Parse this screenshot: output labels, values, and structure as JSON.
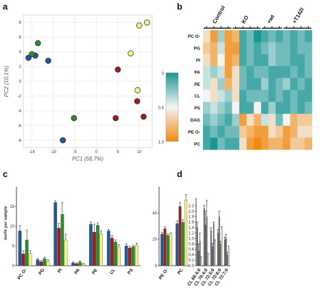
{
  "colors": {
    "Control": "#1f5a96",
    "KO": "#a31a1a",
    "KO +wt": "#2e8b2e",
    "KO +T142I": "#f5ef8a",
    "heat_high": "#1a9694",
    "heat_mid": "#f4f4f4",
    "heat_low": "#f08a10"
  },
  "panels": {
    "a": "a",
    "b": "b",
    "c": "c",
    "d": "d"
  },
  "chart_data": [
    {
      "panel": "a",
      "type": "scatter",
      "xlabel": "PC1 (56.7%)",
      "ylabel": "PC2 (10.1%)",
      "xlim": [
        -17,
        13
      ],
      "ylim": [
        -9,
        9
      ],
      "xticks": [
        -15,
        -10,
        -5,
        0,
        5,
        10
      ],
      "yticks": [
        -8,
        -6,
        -4,
        -2,
        0,
        2,
        4,
        6,
        8
      ],
      "grid": true,
      "series": [
        {
          "name": "Control",
          "points": [
            [
              -15.8,
              3.2
            ],
            [
              -14.2,
              3.5
            ],
            [
              -11.2,
              2.8
            ],
            [
              -7.8,
              -8.0
            ]
          ]
        },
        {
          "name": "KO",
          "points": [
            [
              5.0,
              1.6
            ],
            [
              9.5,
              -2.7
            ],
            [
              11.0,
              -4.8
            ],
            [
              4.5,
              -5.0
            ]
          ]
        },
        {
          "name": "KO +wt",
          "points": [
            [
              -15.0,
              3.7
            ],
            [
              -13.6,
              5.2
            ],
            [
              -5.2,
              -5.0
            ]
          ]
        },
        {
          "name": "KO +T142I",
          "points": [
            [
              8.0,
              3.8
            ],
            [
              10.0,
              7.6
            ],
            [
              11.8,
              8.0
            ],
            [
              9.6,
              -1.2
            ]
          ]
        }
      ]
    },
    {
      "panel": "b",
      "type": "heatmap",
      "groups": [
        "Control",
        "KO",
        "+wt",
        "+T142I"
      ],
      "group_sizes": [
        4,
        4,
        3,
        4
      ],
      "rows": [
        "PC O-",
        "PG",
        "PI",
        "PA",
        "PE",
        "CL",
        "PS",
        "DAG",
        "PE O-",
        "PC"
      ],
      "colorbar_ticks": [
        "0",
        "0.5",
        "1.0"
      ],
      "values": [
        [
          0.6,
          0.9,
          0.3,
          0.9,
          0.8,
          0.1,
          0.2,
          0.0,
          0.1,
          0.2,
          0.1,
          0.2,
          0.1,
          0.2,
          0.1
        ],
        [
          0.7,
          0.8,
          0.4,
          0.9,
          0.9,
          0.1,
          0.2,
          0.1,
          0.2,
          0.3,
          0.2,
          0.2,
          0.1,
          0.2,
          0.2
        ],
        [
          0.6,
          0.8,
          0.5,
          0.9,
          0.8,
          0.1,
          0.2,
          0.1,
          0.1,
          0.3,
          0.2,
          0.2,
          0.1,
          0.1,
          0.2
        ],
        [
          0.4,
          0.3,
          0.4,
          0.9,
          0.6,
          0.2,
          0.1,
          0.2,
          0.2,
          0.1,
          0.1,
          0.1,
          0.2,
          0.1,
          0.2
        ],
        [
          0.4,
          0.6,
          0.3,
          0.8,
          0.6,
          0.2,
          0.1,
          0.1,
          0.3,
          0.1,
          0.2,
          0.3,
          0.1,
          0.2,
          0.1
        ],
        [
          0.5,
          0.6,
          0.4,
          0.3,
          0.6,
          0.1,
          0.2,
          0.2,
          0.2,
          0.1,
          0.2,
          0.1,
          0.2,
          0.1,
          0.1
        ],
        [
          0.3,
          0.4,
          0.3,
          0.2,
          0.5,
          0.1,
          0.1,
          0.5,
          0.1,
          0.3,
          0.1,
          0.1,
          0.2,
          0.1,
          0.2
        ],
        [
          0.2,
          0.3,
          0.2,
          0.1,
          0.3,
          0.9,
          0.6,
          0.8,
          0.4,
          0.6,
          0.2,
          0.5,
          0.8,
          0.7,
          0.7
        ],
        [
          0.1,
          0.2,
          0.1,
          0.2,
          0.2,
          0.7,
          0.8,
          0.9,
          0.9,
          0.6,
          0.7,
          0.9,
          0.8,
          0.6,
          0.6
        ],
        [
          0.1,
          0.0,
          0.2,
          0.1,
          0.1,
          0.6,
          0.9,
          1.0,
          0.9,
          0.8,
          0.8,
          0.9,
          0.7,
          0.7,
          0.8
        ]
      ]
    },
    {
      "panel": "c",
      "type": "bar",
      "ylabel": "mol% per sample",
      "subplots": [
        {
          "categories": [
            "PC O-",
            "PG",
            "PI",
            "PA",
            "PE",
            "CL",
            "PS"
          ],
          "ylim": [
            0,
            20
          ],
          "yticks": [
            0,
            5,
            10,
            15
          ],
          "series": [
            {
              "name": "Control",
              "values": [
                8.8,
                1.5,
                16.0,
                0.7,
                10.5,
                8.8,
                5.0
              ],
              "errors": [
                1.3,
                0.3,
                0.5,
                0.2,
                0.6,
                0.4,
                0.5
              ]
            },
            {
              "name": "KO",
              "values": [
                3.0,
                1.0,
                9.5,
                0.5,
                8.5,
                7.0,
                4.5
              ],
              "errors": [
                0.8,
                0.3,
                1.2,
                0.2,
                2.0,
                0.6,
                0.4
              ]
            },
            {
              "name": "KO +wt",
              "values": [
                6.5,
                1.8,
                13.0,
                0.9,
                10.2,
                6.0,
                4.8
              ],
              "errors": [
                2.5,
                0.4,
                3.0,
                0.3,
                0.6,
                0.5,
                0.4
              ]
            },
            {
              "name": "KO +T142I",
              "values": [
                3.0,
                1.2,
                6.5,
                0.4,
                8.0,
                4.8,
                5.2
              ],
              "errors": [
                0.8,
                0.3,
                1.5,
                0.1,
                0.8,
                0.5,
                0.5
              ]
            }
          ]
        },
        {
          "categories": [
            "PE O-",
            "PC"
          ],
          "ylim": [
            0,
            60
          ],
          "yticks": [
            0,
            20,
            40
          ],
          "series": [
            {
              "name": "Control",
              "values": [
                24,
                32
              ],
              "errors": [
                1.5,
                2.0
              ]
            },
            {
              "name": "KO",
              "values": [
                28,
                45
              ],
              "errors": [
                1.5,
                3.0
              ]
            },
            {
              "name": "KO +wt",
              "values": [
                23,
                33
              ],
              "errors": [
                1.2,
                2.0
              ]
            },
            {
              "name": "KO +T142I",
              "values": [
                24,
                50
              ],
              "errors": [
                1.0,
                4.0
              ]
            }
          ]
        }
      ]
    },
    {
      "panel": "d",
      "type": "bar",
      "categories": [
        "CL 68:4;0",
        "CL 70:4;0",
        "CL 72:5;0",
        "CL 72:6;0",
        "CL 72:7;0"
      ],
      "ylim": [
        0,
        2.5
      ],
      "yticks": [
        0.0,
        0.2,
        0.4,
        0.6,
        0.8,
        1.0,
        1.2,
        1.4,
        1.6,
        1.8,
        2.0,
        2.2
      ],
      "legend_position": "top-right",
      "series": [
        {
          "name": "Control",
          "values": [
            1.4,
            2.1,
            1.3,
            1.2,
            0.95
          ],
          "errors": [
            0.2,
            0.12,
            0.1,
            0.12,
            0.1
          ]
        },
        {
          "name": "KO",
          "values": [
            0.55,
            1.5,
            0.7,
            1.8,
            1.0
          ],
          "errors": [
            0.25,
            0.5,
            0.12,
            0.2,
            0.15
          ]
        },
        {
          "name": "KO +wt",
          "values": [
            0.9,
            1.8,
            1.55,
            0.8,
            0.4
          ],
          "errors": [
            0.3,
            0.6,
            0.05,
            0.1,
            0.1
          ]
        },
        {
          "name": "KO +T142I",
          "values": [
            0.25,
            0.35,
            0.85,
            1.35,
            0.62
          ],
          "errors": [
            0.08,
            0.1,
            0.1,
            0.08,
            0.1
          ]
        }
      ]
    }
  ]
}
